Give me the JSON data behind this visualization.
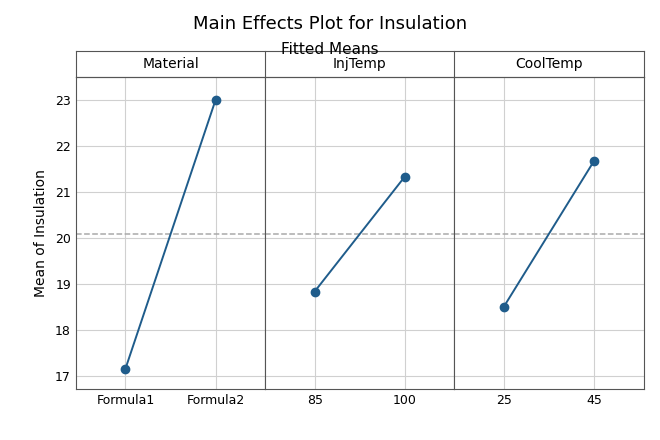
{
  "title": "Main Effects Plot for Insulation",
  "subtitle": "Fitted Means",
  "ylabel": "Mean of Insulation",
  "ylim": [
    16.7,
    23.5
  ],
  "yticks": [
    17,
    18,
    19,
    20,
    21,
    22,
    23
  ],
  "grand_mean": 20.083,
  "panels": [
    {
      "label": "Material",
      "x_labels": [
        "Formula1",
        "Formula2"
      ],
      "y_values": [
        17.15,
        23.0
      ]
    },
    {
      "label": "InjTemp",
      "x_labels": [
        "85",
        "100"
      ],
      "y_values": [
        18.83,
        21.33
      ]
    },
    {
      "label": "CoolTemp",
      "x_labels": [
        "25",
        "45"
      ],
      "y_values": [
        18.5,
        21.67
      ]
    }
  ],
  "line_color": "#1F5C8B",
  "marker_color": "#1F5C8B",
  "marker_size": 6,
  "line_width": 1.4,
  "dashed_line_color": "#aaaaaa",
  "grid_color": "#d0d0d0",
  "background_color": "#ffffff",
  "plot_bg_color": "#ffffff",
  "border_color": "#555555",
  "title_fontsize": 13,
  "subtitle_fontsize": 11,
  "panel_label_fontsize": 10,
  "ylabel_fontsize": 10,
  "tick_fontsize": 9
}
